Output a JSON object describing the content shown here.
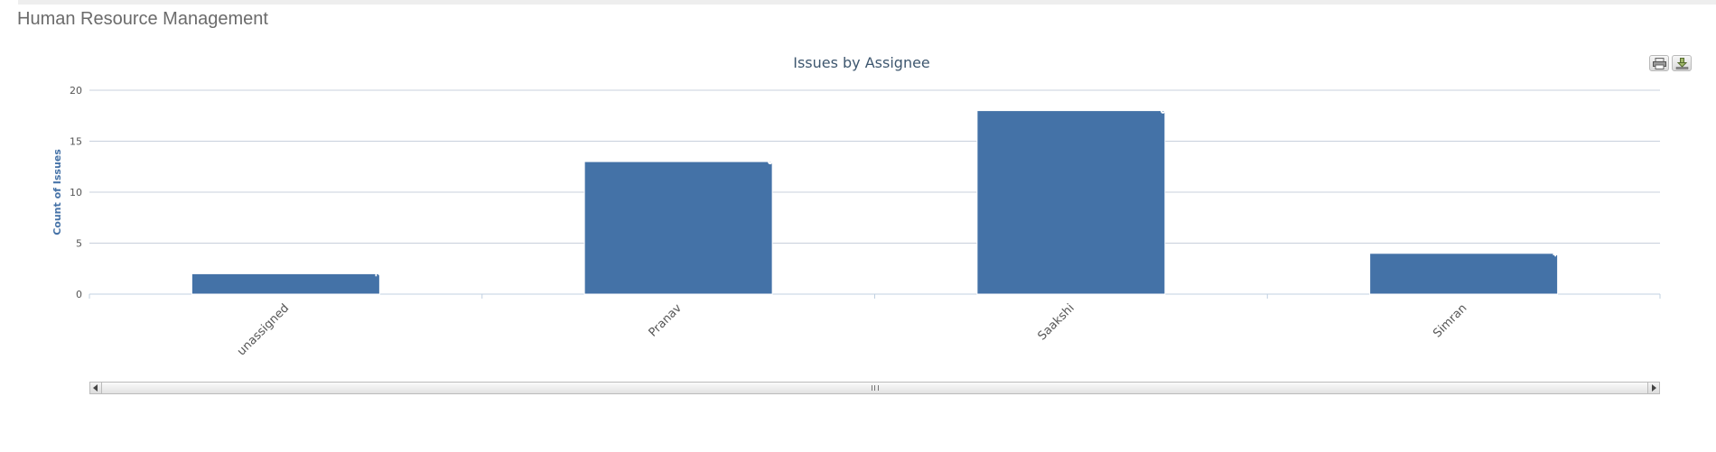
{
  "panel": {
    "title": "Human Resource Management"
  },
  "toolbar": {
    "print_icon": "printer-icon",
    "export_icon": "download-icon"
  },
  "colors": {
    "bar": "#4472a7",
    "grid": "#c8d0dc",
    "axis_text": "#555555",
    "ylabel_text": "#4572a7",
    "title_text": "#3e576f"
  },
  "chart_data": {
    "type": "bar",
    "title": "Issues by Assignee",
    "xlabel": "",
    "ylabel": "Count of Issues",
    "categories": [
      "unassigned",
      "Pranav",
      "Saakshi",
      "Simran"
    ],
    "values": [
      2,
      13,
      18,
      4
    ],
    "ylim": [
      0,
      20
    ],
    "yticks": [
      0,
      5,
      10,
      15,
      20
    ],
    "data_labels": [
      "2",
      "13",
      "18",
      "4"
    ],
    "grid": true,
    "legend": "none"
  }
}
